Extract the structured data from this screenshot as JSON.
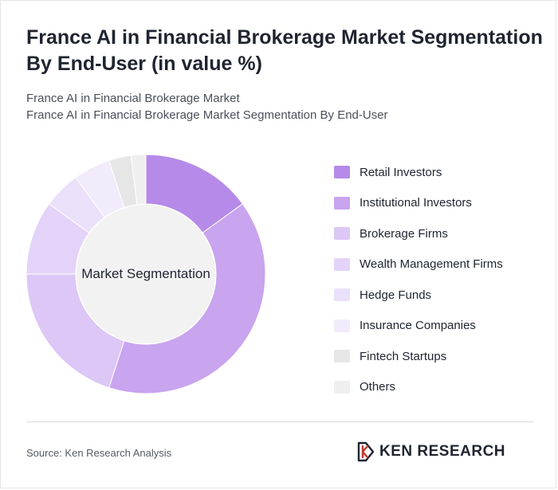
{
  "title": "France AI in Financial Brokerage Market Segmentation By End-User (in value %)",
  "subtitle_line1": "France AI in Financial Brokerage Market",
  "subtitle_line2": "France AI in Financial Brokerage Market Segmentation By End-User",
  "center_label": "Market Segmentation",
  "source": "Source: Ken Research Analysis",
  "logo_text": "KEN RESEARCH",
  "chart_data": {
    "type": "pie",
    "donut": true,
    "categories": [
      "Retail Investors",
      "Institutional Investors",
      "Brokerage Firms",
      "Wealth Management Firms",
      "Hedge Funds",
      "Insurance Companies",
      "Fintech Startups",
      "Others"
    ],
    "values": [
      15,
      40,
      20,
      10,
      5,
      5,
      3,
      2
    ],
    "colors": [
      "#b58ae8",
      "#c9a4ef",
      "#dcc7f6",
      "#e4d3f8",
      "#ebe0fa",
      "#f2ebfc",
      "#e6e6e6",
      "#efefef"
    ],
    "legend_position": "right"
  }
}
